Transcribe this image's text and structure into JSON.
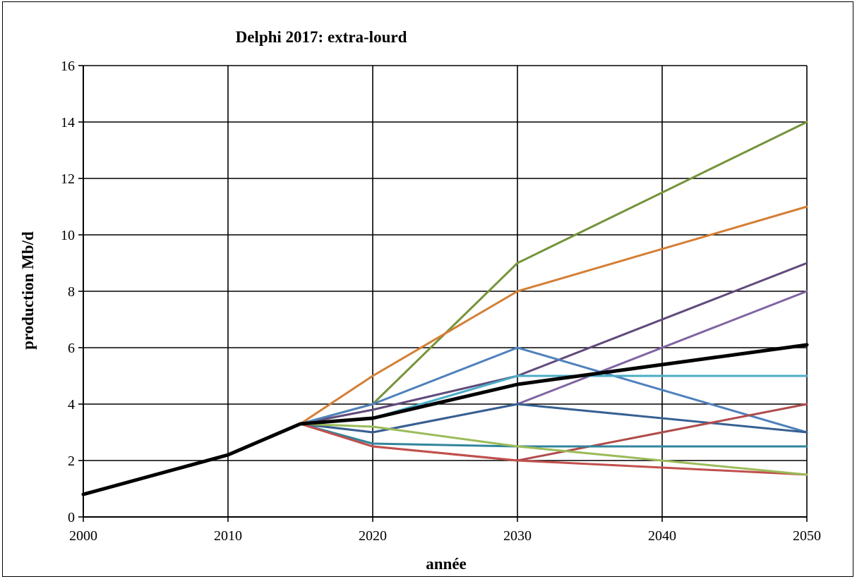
{
  "chart_data": {
    "type": "line",
    "title": "Delphi 2017: extra-lourd",
    "xlabel": "année",
    "ylabel": "production Mb/d",
    "xlim": [
      2000,
      2050
    ],
    "ylim": [
      0,
      16
    ],
    "x_ticks": [
      "2000",
      "2010",
      "2020",
      "2030",
      "2040",
      "2050"
    ],
    "y_ticks": [
      "0",
      "2",
      "4",
      "6",
      "8",
      "10",
      "12",
      "14",
      "16"
    ],
    "grid": true,
    "legend": "none",
    "series": [
      {
        "color": "#77933C",
        "width": 3,
        "points": [
          [
            2015,
            3.3
          ],
          [
            2020,
            4.0
          ],
          [
            2030,
            9.0
          ],
          [
            2050,
            14.0
          ]
        ]
      },
      {
        "color": "#D47F35",
        "width": 3,
        "points": [
          [
            2015,
            3.3
          ],
          [
            2020,
            5.0
          ],
          [
            2030,
            8.0
          ],
          [
            2050,
            11.0
          ]
        ]
      },
      {
        "color": "#604A7B",
        "width": 3,
        "points": [
          [
            2015,
            3.3
          ],
          [
            2020,
            3.8
          ],
          [
            2030,
            5.0
          ],
          [
            2050,
            9.0
          ]
        ]
      },
      {
        "color": "#8064A2",
        "width": 3,
        "points": [
          [
            2015,
            3.3
          ],
          [
            2020,
            3.0
          ],
          [
            2030,
            4.0
          ],
          [
            2050,
            8.0
          ]
        ]
      },
      {
        "color": "#4F81BD",
        "width": 3,
        "points": [
          [
            2015,
            3.3
          ],
          [
            2020,
            4.0
          ],
          [
            2030,
            6.0
          ],
          [
            2050,
            3.0
          ]
        ]
      },
      {
        "color": "#4BACC6",
        "width": 3,
        "points": [
          [
            2015,
            3.3
          ],
          [
            2020,
            3.5
          ],
          [
            2030,
            5.0
          ],
          [
            2050,
            5.0
          ]
        ]
      },
      {
        "color": "#376092",
        "width": 3,
        "points": [
          [
            2015,
            3.3
          ],
          [
            2020,
            3.0
          ],
          [
            2030,
            4.0
          ],
          [
            2050,
            3.0
          ]
        ]
      },
      {
        "color": "#B04B4B",
        "width": 3,
        "points": [
          [
            2015,
            3.3
          ],
          [
            2020,
            2.5
          ],
          [
            2030,
            2.0
          ],
          [
            2050,
            4.0
          ]
        ]
      },
      {
        "color": "#31859C",
        "width": 3,
        "points": [
          [
            2015,
            3.3
          ],
          [
            2020,
            2.6
          ],
          [
            2030,
            2.5
          ],
          [
            2050,
            2.5
          ]
        ]
      },
      {
        "color": "#C0504D",
        "width": 3,
        "points": [
          [
            2015,
            3.3
          ],
          [
            2020,
            2.5
          ],
          [
            2030,
            2.0
          ],
          [
            2050,
            1.5
          ]
        ]
      },
      {
        "color": "#9BBB59",
        "width": 3,
        "points": [
          [
            2000,
            0.8
          ],
          [
            2010,
            2.2
          ],
          [
            2015,
            3.3
          ],
          [
            2020,
            3.2
          ],
          [
            2030,
            2.5
          ],
          [
            2050,
            1.5
          ]
        ]
      },
      {
        "color": "#000000",
        "width": 5,
        "points": [
          [
            2000,
            0.8
          ],
          [
            2010,
            2.2
          ],
          [
            2015,
            3.3
          ],
          [
            2020,
            3.5
          ],
          [
            2030,
            4.7
          ],
          [
            2050,
            6.1
          ]
        ]
      }
    ]
  }
}
